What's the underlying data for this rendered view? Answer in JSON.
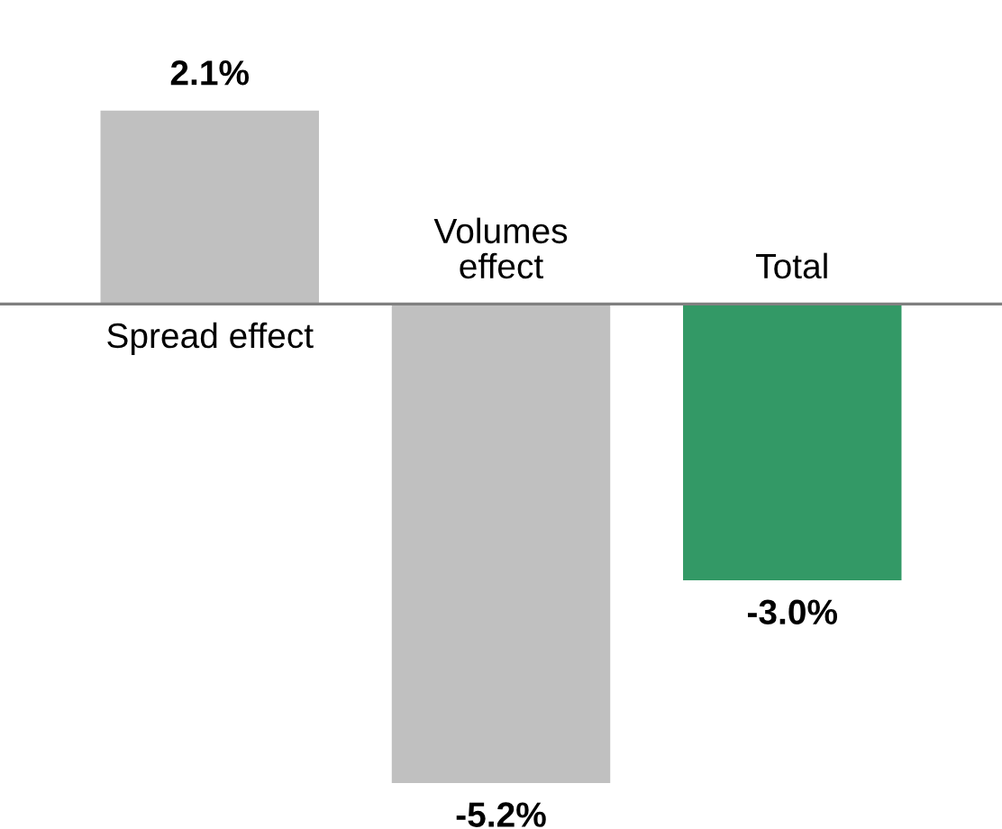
{
  "chart_data": {
    "type": "bar",
    "categories": [
      "Spread effect",
      "Volumes\neffect",
      "Total"
    ],
    "values": [
      2.1,
      -5.2,
      -3.0
    ],
    "colors": [
      "#c0c0c0",
      "#c0c0c0",
      "#339966"
    ],
    "value_labels": [
      "2.1%",
      "-5.2%",
      "-3.0%"
    ],
    "ylim": [
      -5.7,
      3.3
    ]
  }
}
